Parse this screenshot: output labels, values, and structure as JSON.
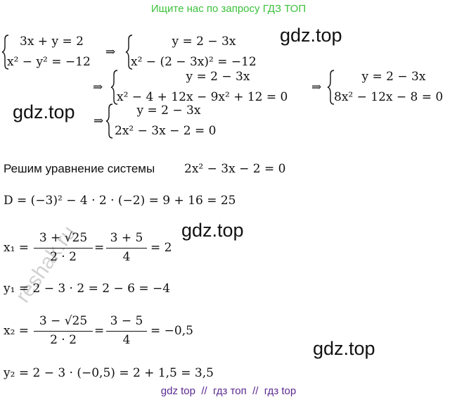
{
  "header": "Ищите нас по запросу ГДЗ ТОП",
  "watermarks": [
    "gdz.top",
    "gdz.top",
    "gdz.top",
    "gdz.top",
    "reshak.ru"
  ],
  "arrow": "⇒",
  "system1": [
    "3x + y = 2",
    "x² − y² = −12"
  ],
  "system2": [
    "y = 2 − 3x",
    "x² − (2 − 3x)² = −12"
  ],
  "system3": [
    "y = 2 − 3x",
    "x² − 4 + 12x − 9x² + 12 = 0"
  ],
  "system4": [
    "y = 2 − 3x",
    "8x² − 12x − 8 = 0"
  ],
  "system5": [
    "y = 2 − 3x",
    "2x² − 3x − 2 = 0"
  ],
  "solve_text": "Решим уравнение системы",
  "solve_eq": "2x² − 3x − 2 = 0",
  "discriminant": "D = (−3)² − 4 · 2 · (−2) = 9 + 16 = 25",
  "x1": {
    "lhs": "x₁ =",
    "num1": "3 + √25",
    "den1": "2 · 2",
    "eq": "=",
    "num2": "3 + 5",
    "den2": "4",
    "rhs": "= 2"
  },
  "y1": "y₁ = 2 − 3 · 2 = 2 − 6 = −4",
  "x2": {
    "lhs": "x₂ =",
    "num1": "3 − √25",
    "den1": "2 · 2",
    "eq": "=",
    "num2": "3 − 5",
    "den2": "4",
    "rhs": "= −0,5"
  },
  "y2": "y₂ = 2 − 3 · (−0,5) = 2 + 1,5 = 3,5",
  "footer": "gdz top  //  гдз топ  //  гдз top"
}
